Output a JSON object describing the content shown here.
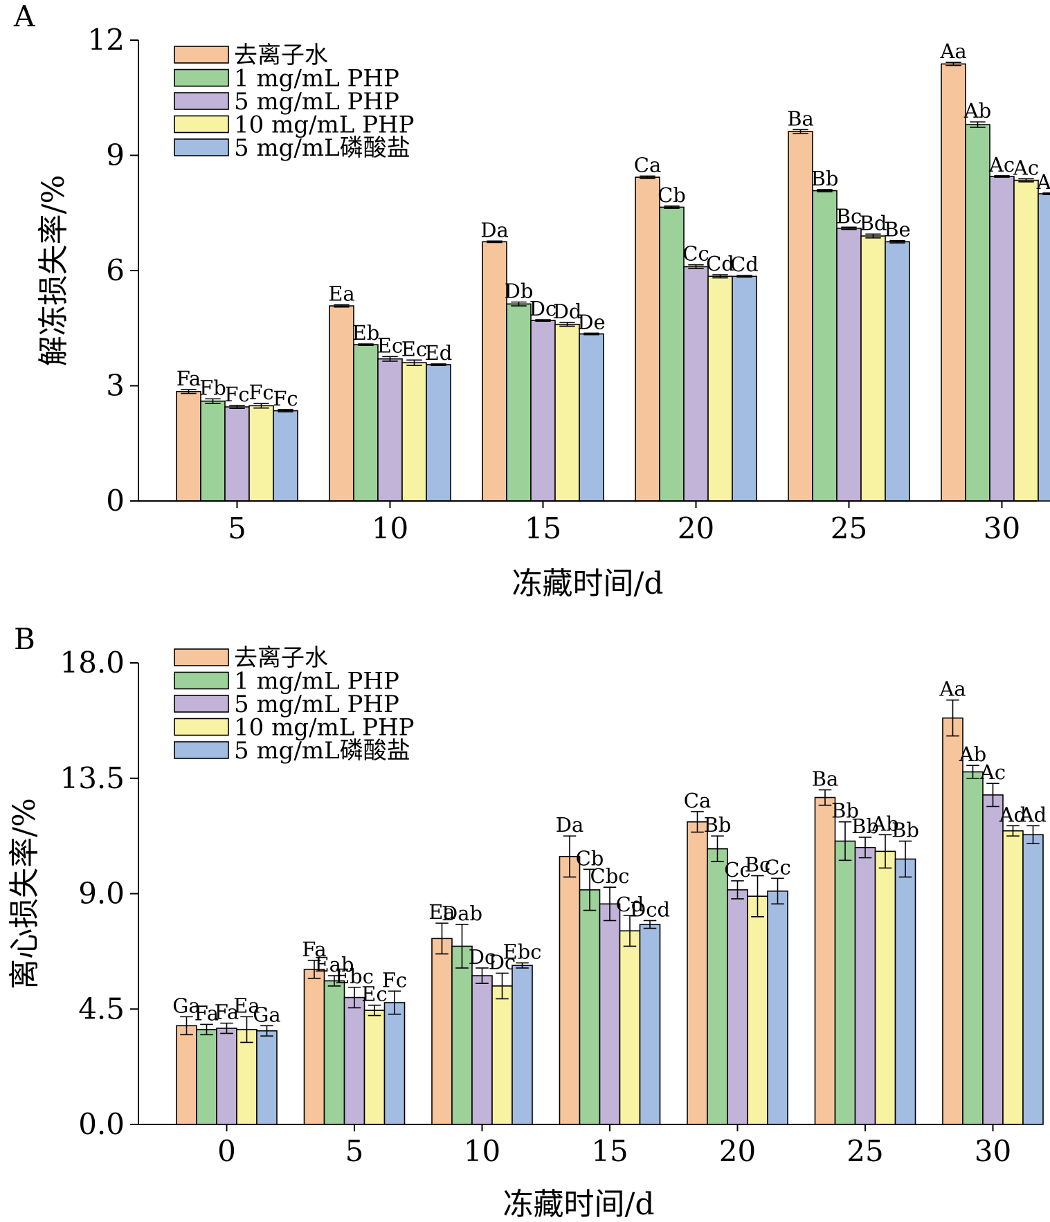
{
  "chart_data": [
    {
      "panel_label": "A",
      "type": "bar",
      "xlabel": "冻藏时间/d",
      "ylabel": "解冻损失率/%",
      "categories": [
        "5",
        "10",
        "15",
        "20",
        "25",
        "30"
      ],
      "ylim": [
        0,
        12
      ],
      "yticks": [
        0,
        3,
        6,
        9,
        12
      ],
      "ytick_labels": [
        "0",
        "3",
        "6",
        "9",
        "12"
      ],
      "grid": false,
      "legend_position": "top-left",
      "series": [
        {
          "name": "去离子水",
          "color": "#F7C59C",
          "values": [
            2.85,
            5.08,
            6.75,
            8.43,
            9.62,
            11.38
          ],
          "errors": [
            0.05,
            0.03,
            0.02,
            0.03,
            0.05,
            0.04
          ],
          "labels": [
            "Fa",
            "Ea",
            "Da",
            "Ca",
            "Ba",
            "Aa"
          ]
        },
        {
          "name": "1 mg/mL PHP",
          "color": "#9DD19A",
          "values": [
            2.6,
            4.07,
            5.13,
            7.65,
            8.08,
            9.8
          ],
          "errors": [
            0.06,
            0.02,
            0.05,
            0.03,
            0.03,
            0.07
          ],
          "labels": [
            "Fb",
            "Eb",
            "Db",
            "Cb",
            "Bb",
            "Ab"
          ]
        },
        {
          "name": "5 mg/mL PHP",
          "color": "#C2B3D8",
          "values": [
            2.45,
            3.7,
            4.7,
            6.1,
            7.1,
            8.45
          ],
          "errors": [
            0.04,
            0.06,
            0.02,
            0.05,
            0.03,
            0.02
          ],
          "labels": [
            "Fc",
            "Ec",
            "Dc",
            "Cc",
            "Bc",
            "Ac"
          ]
        },
        {
          "name": "10 mg/mL PHP",
          "color": "#F8F3A3",
          "values": [
            2.48,
            3.6,
            4.6,
            5.85,
            6.9,
            8.35
          ],
          "errors": [
            0.06,
            0.07,
            0.05,
            0.04,
            0.05,
            0.04
          ],
          "labels": [
            "Fc",
            "Ec",
            "Dd",
            "Cd",
            "Bd",
            "Ac"
          ]
        },
        {
          "name": "5 mg/mL磷酸盐",
          "color": "#A3BDE2",
          "values": [
            2.35,
            3.55,
            4.35,
            5.85,
            6.75,
            8.0
          ],
          "errors": [
            0.03,
            0.02,
            0.02,
            0.02,
            0.03,
            0.02
          ],
          "labels": [
            "Fc",
            "Ed",
            "De",
            "Cd",
            "Be",
            "Ad"
          ]
        }
      ]
    },
    {
      "panel_label": "B",
      "type": "bar",
      "xlabel": "冻藏时间/d",
      "ylabel": "离心损失率/%",
      "categories": [
        "0",
        "5",
        "10",
        "15",
        "20",
        "25",
        "30"
      ],
      "ylim": [
        0,
        18
      ],
      "yticks": [
        0,
        4.5,
        9,
        13.5,
        18
      ],
      "ytick_labels": [
        "0.0",
        "4.5",
        "9.0",
        "13.5",
        "18.0"
      ],
      "grid": false,
      "legend_position": "top-left",
      "series": [
        {
          "name": "去离子水",
          "color": "#F7C59C",
          "values": [
            3.85,
            6.05,
            7.25,
            10.45,
            11.8,
            12.75,
            15.85
          ],
          "errors": [
            0.35,
            0.35,
            0.6,
            0.8,
            0.4,
            0.3,
            0.7
          ],
          "labels": [
            "Ga",
            "Fa",
            "Ea",
            "Da",
            "Ca",
            "Ba",
            "Aa"
          ]
        },
        {
          "name": "1 mg/mL PHP",
          "color": "#9DD19A",
          "values": [
            3.7,
            5.6,
            6.95,
            9.15,
            10.75,
            11.05,
            13.75
          ],
          "errors": [
            0.2,
            0.2,
            0.85,
            0.8,
            0.5,
            0.75,
            0.25
          ],
          "labels": [
            "Fa",
            "Eab",
            "Dab",
            "Cb",
            "Bb",
            "Bb",
            "Ab"
          ]
        },
        {
          "name": "5 mg/mL PHP",
          "color": "#C2B3D8",
          "values": [
            3.75,
            4.95,
            5.8,
            8.6,
            9.15,
            10.8,
            12.85
          ],
          "errors": [
            0.2,
            0.4,
            0.3,
            0.65,
            0.35,
            0.4,
            0.45
          ],
          "labels": [
            "Fa",
            "Ebc",
            "Dc",
            "Cbc",
            "Cc",
            "Bb",
            "Ac"
          ]
        },
        {
          "name": "10 mg/mL PHP",
          "color": "#F8F3A3",
          "values": [
            3.7,
            4.45,
            5.4,
            7.55,
            8.9,
            10.65,
            11.45
          ],
          "errors": [
            0.5,
            0.2,
            0.5,
            0.6,
            0.8,
            0.65,
            0.2
          ],
          "labels": [
            "Ea",
            "Ec",
            "Dc",
            "Cd",
            "Bc",
            "Ab",
            "Ad"
          ]
        },
        {
          "name": "5 mg/mL磷酸盐",
          "color": "#A3BDE2",
          "values": [
            3.65,
            4.75,
            6.2,
            7.8,
            9.1,
            10.35,
            11.3
          ],
          "errors": [
            0.2,
            0.45,
            0.1,
            0.15,
            0.5,
            0.7,
            0.35
          ],
          "labels": [
            "Ga",
            "Fc",
            "Ebc",
            "Dcd",
            "Cc",
            "Bb",
            "Ad"
          ]
        }
      ]
    }
  ]
}
